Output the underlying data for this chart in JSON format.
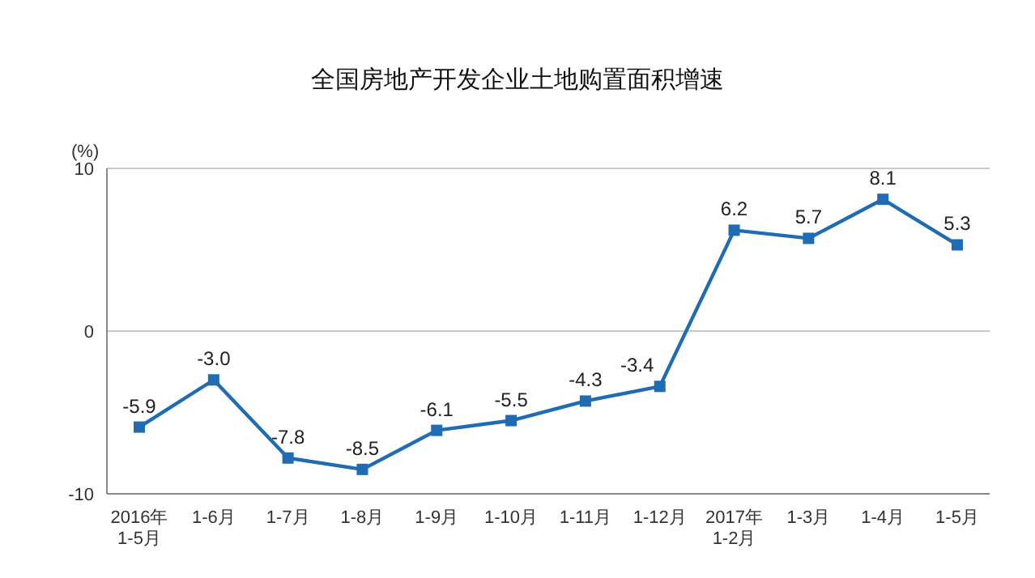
{
  "chart_data": {
    "type": "line",
    "title": "全国房地产开发企业土地购置面积增速",
    "ylabel": "(%)",
    "categories": [
      "2016年\n1-5月",
      "1-6月",
      "1-7月",
      "1-8月",
      "1-9月",
      "1-10月",
      "1-11月",
      "1-12月",
      "2017年\n1-2月",
      "1-3月",
      "1-4月",
      "1-5月"
    ],
    "series": [
      {
        "color": "#1f6cb4",
        "values": [
          -5.9,
          -3.0,
          -7.8,
          -8.5,
          -6.1,
          -5.5,
          -4.3,
          -3.4,
          6.2,
          5.7,
          8.1,
          5.3
        ],
        "value_labels": [
          "-5.9",
          "-3.0",
          "-7.8",
          "-8.5",
          "-6.1",
          "-5.5",
          "-4.3",
          "-3.4",
          "6.2",
          "5.7",
          "8.1",
          "5.3"
        ]
      }
    ],
    "ylim": [
      -10,
      10
    ],
    "yticks": [
      -10,
      0,
      10
    ],
    "grid": "y",
    "marker": "square",
    "line_style": "solid"
  }
}
